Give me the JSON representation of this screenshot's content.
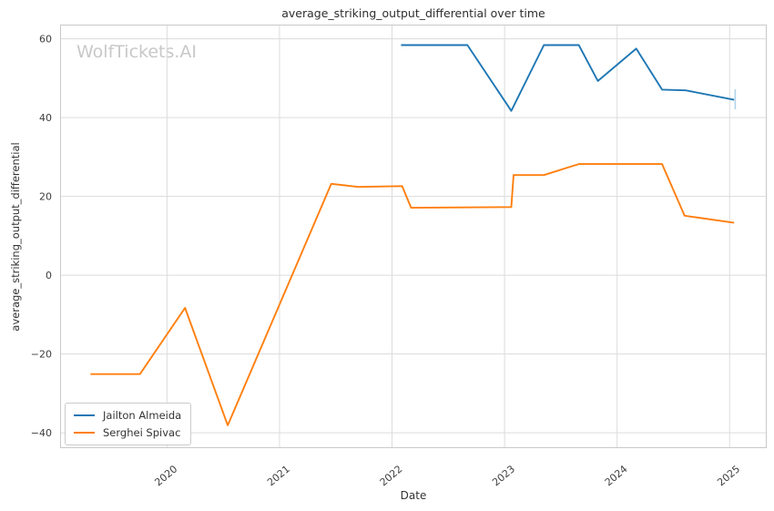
{
  "figure": {
    "title": "average_striking_output_differential over time",
    "watermark": "WolfTickets.AI",
    "xlabel": "Date",
    "ylabel": "average_striking_output_differential"
  },
  "legend": {
    "items": [
      {
        "label": "Jailton Almeida",
        "color": "#1f77b4"
      },
      {
        "label": "Serghei Spivac",
        "color": "#ff7f0e"
      }
    ]
  },
  "colors": {
    "grid": "#dcdcdc",
    "frame": "#c9c9c9",
    "tick_text": "#3d3d3d",
    "watermark": "#c8c8c8",
    "almeida_blue": "#1f77b4",
    "spivac_orange": "#ff7f0e",
    "end_marker_light_blue": "#b3d3ea"
  },
  "chart_data": {
    "type": "line",
    "title": "average_striking_output_differential over time",
    "xlabel": "Date",
    "ylabel": "average_striking_output_differential",
    "xlim": [
      2019.05,
      2025.33
    ],
    "ylim": [
      -43.9,
      63.6
    ],
    "grid": true,
    "legend_position": "lower left",
    "x_ticks": [
      {
        "value": 2020,
        "label": "2020"
      },
      {
        "value": 2021,
        "label": "2021"
      },
      {
        "value": 2022,
        "label": "2022"
      },
      {
        "value": 2023,
        "label": "2023"
      },
      {
        "value": 2024,
        "label": "2024"
      },
      {
        "value": 2025,
        "label": "2025"
      }
    ],
    "y_ticks": [
      {
        "value": 60,
        "label": "60"
      },
      {
        "value": 40,
        "label": "40"
      },
      {
        "value": 20,
        "label": "20"
      },
      {
        "value": 0,
        "label": "0"
      },
      {
        "value": -20,
        "label": "−20"
      },
      {
        "value": -40,
        "label": "−40"
      }
    ],
    "series": [
      {
        "name": "Jailton Almeida",
        "color": "#1f77b4",
        "x": [
          2022.08,
          2022.67,
          2023.06,
          2023.35,
          2023.66,
          2023.83,
          2024.17,
          2024.4,
          2024.61,
          2025.04
        ],
        "y": [
          58.4,
          58.4,
          41.7,
          58.4,
          58.4,
          49.3,
          57.5,
          47.1,
          46.9,
          44.5
        ]
      },
      {
        "name": "Serghei Spivac",
        "color": "#ff7f0e",
        "x": [
          2019.32,
          2019.76,
          2020.16,
          2020.54,
          2021.46,
          2021.7,
          2022.09,
          2022.17,
          2023.06,
          2023.08,
          2023.35,
          2023.66,
          2024.4,
          2024.6,
          2025.04
        ],
        "y": [
          -25.1,
          -25.1,
          -8.3,
          -38.1,
          23.2,
          22.4,
          22.6,
          17.1,
          17.3,
          25.4,
          25.4,
          28.2,
          28.2,
          15.1,
          13.3
        ]
      }
    ],
    "end_marker": {
      "series": "Jailton Almeida",
      "x": 2025.05,
      "y_from": 42.1,
      "y_to": 47.2,
      "color": "#b3d3ea"
    }
  }
}
